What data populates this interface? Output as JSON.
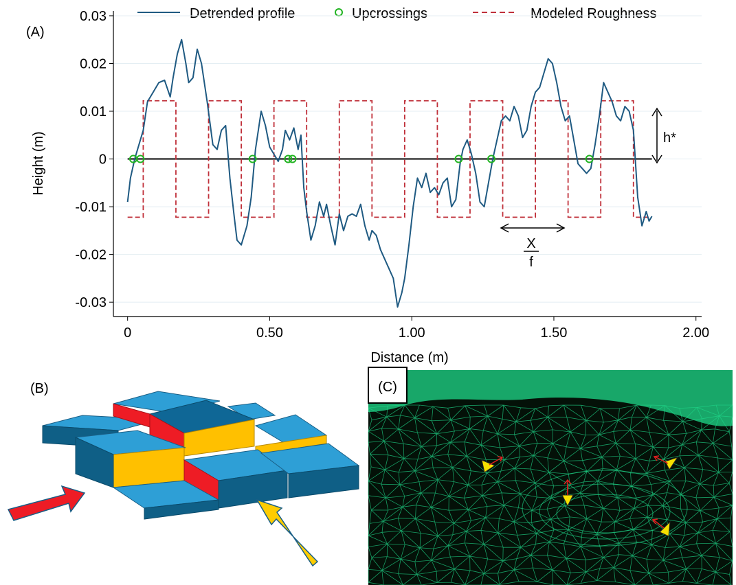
{
  "panels": {
    "a": "(A)",
    "b": "(B)",
    "c": "(C)"
  },
  "chart_data": {
    "type": "line",
    "xlabel": "Distance (m)",
    "ylabel": "Height (m)",
    "xlim": [
      -0.05,
      2.02
    ],
    "ylim": [
      -0.033,
      0.031
    ],
    "xticks": [
      0,
      0.5,
      1.0,
      1.5,
      2.0
    ],
    "xtick_labels": [
      "0",
      "0.50",
      "1.00",
      "1.50",
      "2.00"
    ],
    "yticks": [
      -0.03,
      -0.02,
      -0.01,
      0,
      0.01,
      0.02,
      0.03
    ],
    "ytick_labels": [
      "-0.03",
      "-0.02",
      "-0.01",
      "0",
      "0.01",
      "0.02",
      "0.03"
    ],
    "grid": true,
    "legend": {
      "position": "top",
      "entries": [
        "Detrended profile",
        "Upcrossings",
        "Modeled Roughness"
      ]
    },
    "series": [
      {
        "name": "Detrended profile",
        "color": "#1f5a82",
        "x": [
          0.0,
          0.01,
          0.025,
          0.04,
          0.055,
          0.07,
          0.09,
          0.11,
          0.13,
          0.15,
          0.16,
          0.175,
          0.19,
          0.205,
          0.215,
          0.23,
          0.245,
          0.26,
          0.28,
          0.3,
          0.315,
          0.33,
          0.345,
          0.36,
          0.375,
          0.385,
          0.4,
          0.42,
          0.435,
          0.45,
          0.47,
          0.485,
          0.5,
          0.515,
          0.53,
          0.545,
          0.555,
          0.57,
          0.585,
          0.6,
          0.61,
          0.62,
          0.63,
          0.645,
          0.66,
          0.675,
          0.69,
          0.7,
          0.715,
          0.73,
          0.745,
          0.76,
          0.775,
          0.79,
          0.805,
          0.82,
          0.835,
          0.85,
          0.86,
          0.875,
          0.89,
          0.905,
          0.92,
          0.935,
          0.95,
          0.965,
          0.975,
          0.99,
          1.005,
          1.02,
          1.035,
          1.05,
          1.065,
          1.08,
          1.095,
          1.11,
          1.125,
          1.14,
          1.155,
          1.17,
          1.18,
          1.195,
          1.21,
          1.225,
          1.24,
          1.255,
          1.27,
          1.285,
          1.3,
          1.315,
          1.33,
          1.345,
          1.36,
          1.375,
          1.39,
          1.405,
          1.42,
          1.435,
          1.45,
          1.465,
          1.48,
          1.495,
          1.51,
          1.525,
          1.54,
          1.555,
          1.57,
          1.585,
          1.6,
          1.615,
          1.63,
          1.645,
          1.66,
          1.675,
          1.69,
          1.705,
          1.72,
          1.735,
          1.75,
          1.765,
          1.78,
          1.795,
          1.81,
          1.825,
          1.835,
          1.845
        ],
        "y": [
          -0.009,
          -0.004,
          0.0,
          0.003,
          0.006,
          0.012,
          0.014,
          0.016,
          0.0165,
          0.013,
          0.017,
          0.022,
          0.025,
          0.02,
          0.016,
          0.017,
          0.023,
          0.02,
          0.012,
          0.003,
          0.002,
          0.006,
          0.007,
          -0.004,
          -0.012,
          -0.017,
          -0.018,
          -0.014,
          -0.008,
          0.002,
          0.01,
          0.007,
          0.0025,
          0.001,
          -0.0005,
          0.002,
          0.006,
          0.004,
          0.0065,
          0.002,
          0.005,
          -0.006,
          -0.011,
          -0.017,
          -0.014,
          -0.009,
          -0.012,
          -0.0095,
          -0.014,
          -0.018,
          -0.0115,
          -0.015,
          -0.012,
          -0.0115,
          -0.012,
          -0.0095,
          -0.014,
          -0.017,
          -0.015,
          -0.016,
          -0.019,
          -0.021,
          -0.023,
          -0.025,
          -0.031,
          -0.028,
          -0.025,
          -0.018,
          -0.01,
          -0.004,
          -0.006,
          -0.003,
          -0.007,
          -0.006,
          -0.0075,
          -0.005,
          -0.004,
          -0.01,
          -0.0085,
          -0.001,
          0.002,
          0.004,
          0.001,
          -0.003,
          -0.009,
          -0.01,
          -0.005,
          0.0,
          0.004,
          0.008,
          0.009,
          0.008,
          0.011,
          0.009,
          0.0045,
          0.006,
          0.011,
          0.014,
          0.015,
          0.018,
          0.021,
          0.02,
          0.016,
          0.011,
          0.008,
          0.009,
          0.004,
          -0.001,
          -0.002,
          -0.003,
          -0.002,
          0.003,
          0.009,
          0.016,
          0.014,
          0.012,
          0.009,
          0.008,
          0.011,
          0.01,
          0.006,
          -0.008,
          -0.014,
          -0.011,
          -0.013,
          -0.012
        ]
      },
      {
        "name": "Upcrossings",
        "color": "#22b422",
        "x": [
          0.02,
          0.045,
          0.44,
          0.565,
          0.58,
          1.165,
          1.28,
          1.625
        ],
        "y": [
          0,
          0,
          0,
          0,
          0,
          0,
          0,
          0
        ]
      },
      {
        "name": "Modeled Roughness",
        "color": "#c0303a",
        "x": [
          0.0,
          0.055,
          0.055,
          0.17,
          0.17,
          0.285,
          0.285,
          0.4,
          0.4,
          0.515,
          0.515,
          0.63,
          0.63,
          0.745,
          0.745,
          0.86,
          0.86,
          0.975,
          0.975,
          1.09,
          1.09,
          1.205,
          1.205,
          1.32,
          1.32,
          1.435,
          1.435,
          1.55,
          1.55,
          1.665,
          1.665,
          1.78,
          1.78,
          1.835
        ],
        "y": [
          -0.0122,
          -0.0122,
          0.0122,
          0.0122,
          -0.0122,
          -0.0122,
          0.0122,
          0.0122,
          -0.0122,
          -0.0122,
          0.0122,
          0.0122,
          -0.0122,
          -0.0122,
          0.0122,
          0.0122,
          -0.0122,
          -0.0122,
          0.0122,
          0.0122,
          -0.0122,
          -0.0122,
          0.0122,
          0.0122,
          -0.0122,
          -0.0122,
          0.0122,
          0.0122,
          -0.0122,
          -0.0122,
          0.0122,
          0.0122,
          -0.0122,
          -0.0122
        ]
      }
    ],
    "annotations": {
      "height": "h*",
      "spacing_numerator": "X",
      "spacing_denominator": "f"
    }
  },
  "colors": {
    "block_top": "#2e9fd6",
    "block_side": "#0f5f86",
    "block_step": "#ffc000",
    "block_shadow": "#ee1c25",
    "arrow_red": "#ee1c25",
    "arrow_yellow": "#ffcc00",
    "mesh_green": "#1fd98a"
  }
}
